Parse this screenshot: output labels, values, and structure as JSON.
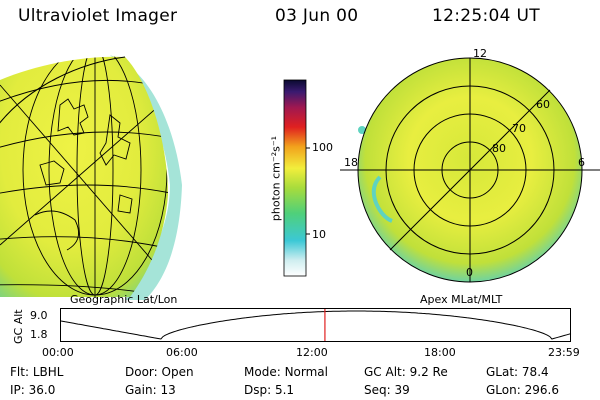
{
  "header": {
    "title": "Ultraviolet Imager",
    "date": "03 Jun 00",
    "time": "12:25:04 UT"
  },
  "colorbar": {
    "label": "photon cm⁻²s⁻¹",
    "ticks": [
      "100",
      "10"
    ]
  },
  "geo_panel": {
    "caption": "Geographic Lat/Lon"
  },
  "polar_panel": {
    "caption": "Apex MLat/MLT",
    "mlt_labels": [
      "12",
      "18",
      "6",
      "0"
    ],
    "mlat_labels": [
      "60",
      "70",
      "80"
    ]
  },
  "altitude_plot": {
    "ylabel": "GC Alt",
    "y_ticks": [
      "9.0",
      "1.8"
    ],
    "x_ticks": [
      "00:00",
      "06:00",
      "12:00",
      "18:00",
      "23:59"
    ],
    "marker_time_hours": 12.42,
    "orbit_minima_hours": [
      4.7,
      23.1
    ],
    "orbit_maximum_hours": 13.9
  },
  "info": {
    "row1": [
      {
        "label": "Flt:",
        "value": "LBHL"
      },
      {
        "label": "Door:",
        "value": "Open"
      },
      {
        "label": "Mode:",
        "value": "Normal"
      },
      {
        "label": "GC Alt:",
        "value": "9.2 Re"
      },
      {
        "label": "GLat:",
        "value": "78.4"
      }
    ],
    "row2": [
      {
        "label": "IP:",
        "value": "36.0"
      },
      {
        "label": "Gain:",
        "value": "13"
      },
      {
        "label": "Dsp:",
        "value": "5.1"
      },
      {
        "label": "Seq:",
        "value": "39"
      },
      {
        "label": "GLon:",
        "value": "296.6"
      }
    ]
  },
  "colors": {
    "background": "#ffffff",
    "emission_low": "#e6ee40",
    "emission_mid": "#b8dd3a",
    "emission_edge": "#33c7d0",
    "marker": "#e02020"
  }
}
